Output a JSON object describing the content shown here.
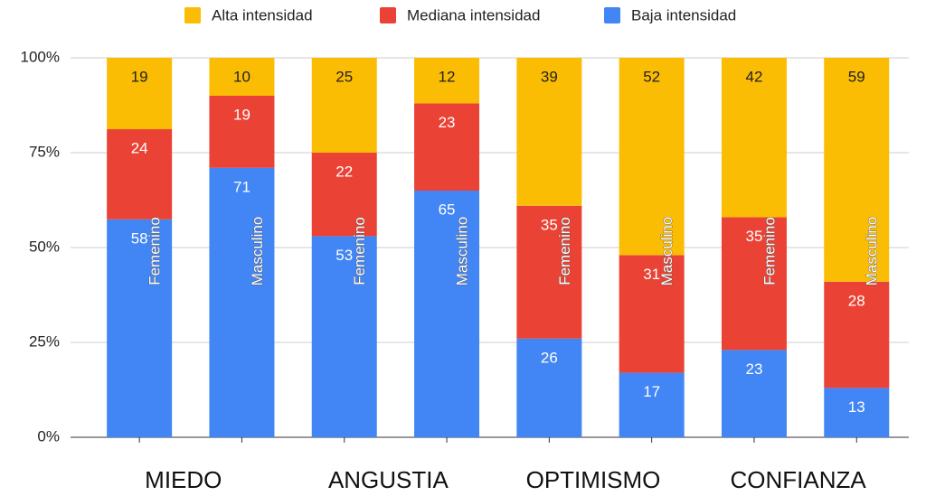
{
  "chart_data": {
    "type": "bar",
    "stacking": "percent",
    "categories": [
      "Femenino",
      "Masculino",
      "Femenino",
      "Masculino",
      "Femenino",
      "Masculino",
      "Femenino",
      "Masculino"
    ],
    "groups": [
      "MIEDO",
      "ANGUSTIA",
      "OPTIMISMO",
      "CONFIANZA"
    ],
    "series": [
      {
        "name": "Baja intensidad",
        "color": "#4285f4",
        "label_color": "#ffffff",
        "values": [
          58,
          71,
          53,
          65,
          26,
          17,
          23,
          13
        ]
      },
      {
        "name": "Mediana intensidad",
        "color": "#ea4335",
        "label_color": "#ffffff",
        "values": [
          24,
          19,
          22,
          23,
          35,
          31,
          35,
          28
        ]
      },
      {
        "name": "Alta intensidad",
        "color": "#fbbc04",
        "label_color": "#222222",
        "values": [
          19,
          10,
          25,
          12,
          39,
          52,
          42,
          59
        ]
      }
    ],
    "ylim": [
      0,
      100
    ],
    "yticks": [
      {
        "value": 0,
        "label": "0%"
      },
      {
        "value": 25,
        "label": "25%"
      },
      {
        "value": 50,
        "label": "50%"
      },
      {
        "value": 75,
        "label": "75%"
      },
      {
        "value": 100,
        "label": "100%"
      }
    ],
    "grid": true,
    "legend": "top"
  }
}
